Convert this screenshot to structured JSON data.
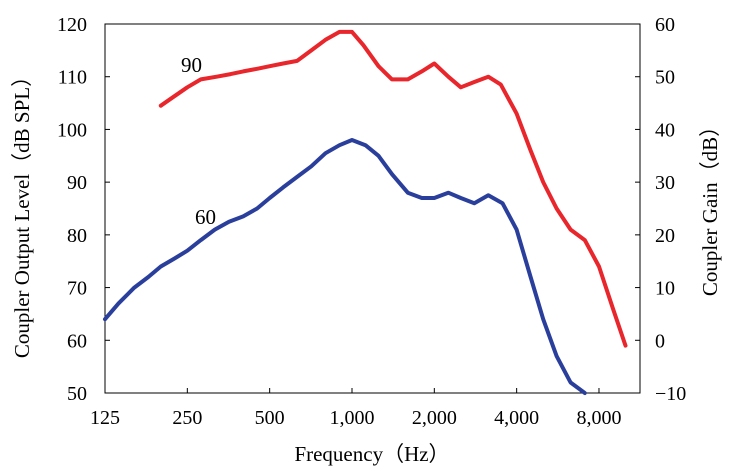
{
  "chart_data": {
    "type": "line",
    "title": "",
    "xlabel": "Frequency（Hz）",
    "ylabel": "Coupler Output Level（dB SPL）",
    "y2label": "Coupler Gain（dB）",
    "x_scale": "log",
    "x_ticks": [
      125,
      250,
      500,
      1000,
      2000,
      4000,
      8000
    ],
    "x_tick_labels": [
      "125",
      "250",
      "500",
      "1,000",
      "2,000",
      "4,000",
      "8,000"
    ],
    "xlim": [
      125,
      11300
    ],
    "ylim": [
      50,
      120
    ],
    "y_ticks": [
      50,
      60,
      70,
      80,
      90,
      100,
      110,
      120
    ],
    "y2lim": [
      -10,
      60
    ],
    "y2_ticks": [
      -10,
      0,
      10,
      20,
      30,
      40,
      50,
      60
    ],
    "grid": false,
    "legend": "none",
    "series": [
      {
        "name": "90",
        "color": "#e8262b",
        "x": [
          200,
          220,
          250,
          280,
          320,
          360,
          400,
          450,
          500,
          560,
          630,
          710,
          800,
          900,
          1000,
          1100,
          1250,
          1400,
          1600,
          1800,
          2000,
          2250,
          2500,
          2800,
          3150,
          3500,
          4000,
          4500,
          5000,
          5600,
          6300,
          7100,
          8000,
          9000,
          10000
        ],
        "y": [
          104.5,
          106,
          108,
          109.5,
          110,
          110.5,
          111,
          111.5,
          112,
          112.5,
          113,
          115,
          117,
          118.5,
          118.5,
          116,
          112,
          109.5,
          109.5,
          111,
          112.5,
          110,
          108,
          109,
          110,
          108.5,
          103,
          96,
          90,
          85,
          81,
          79,
          74,
          66,
          59
        ]
      },
      {
        "name": "60",
        "color": "#2a3f9c",
        "x": [
          125,
          140,
          160,
          180,
          200,
          224,
          250,
          280,
          315,
          355,
          400,
          450,
          500,
          560,
          630,
          710,
          800,
          900,
          1000,
          1120,
          1250,
          1400,
          1600,
          1800,
          2000,
          2250,
          2500,
          2800,
          3150,
          3550,
          4000,
          4500,
          5000,
          5600,
          6300,
          7100
        ],
        "y": [
          64,
          67,
          70,
          72,
          74,
          75.5,
          77,
          79,
          81,
          82.5,
          83.5,
          85,
          87,
          89,
          91,
          93,
          95.5,
          97,
          98,
          97,
          95,
          91.5,
          88,
          87,
          87,
          88,
          87,
          86,
          87.5,
          86,
          81,
          72,
          64,
          57,
          52,
          50
        ]
      }
    ]
  }
}
